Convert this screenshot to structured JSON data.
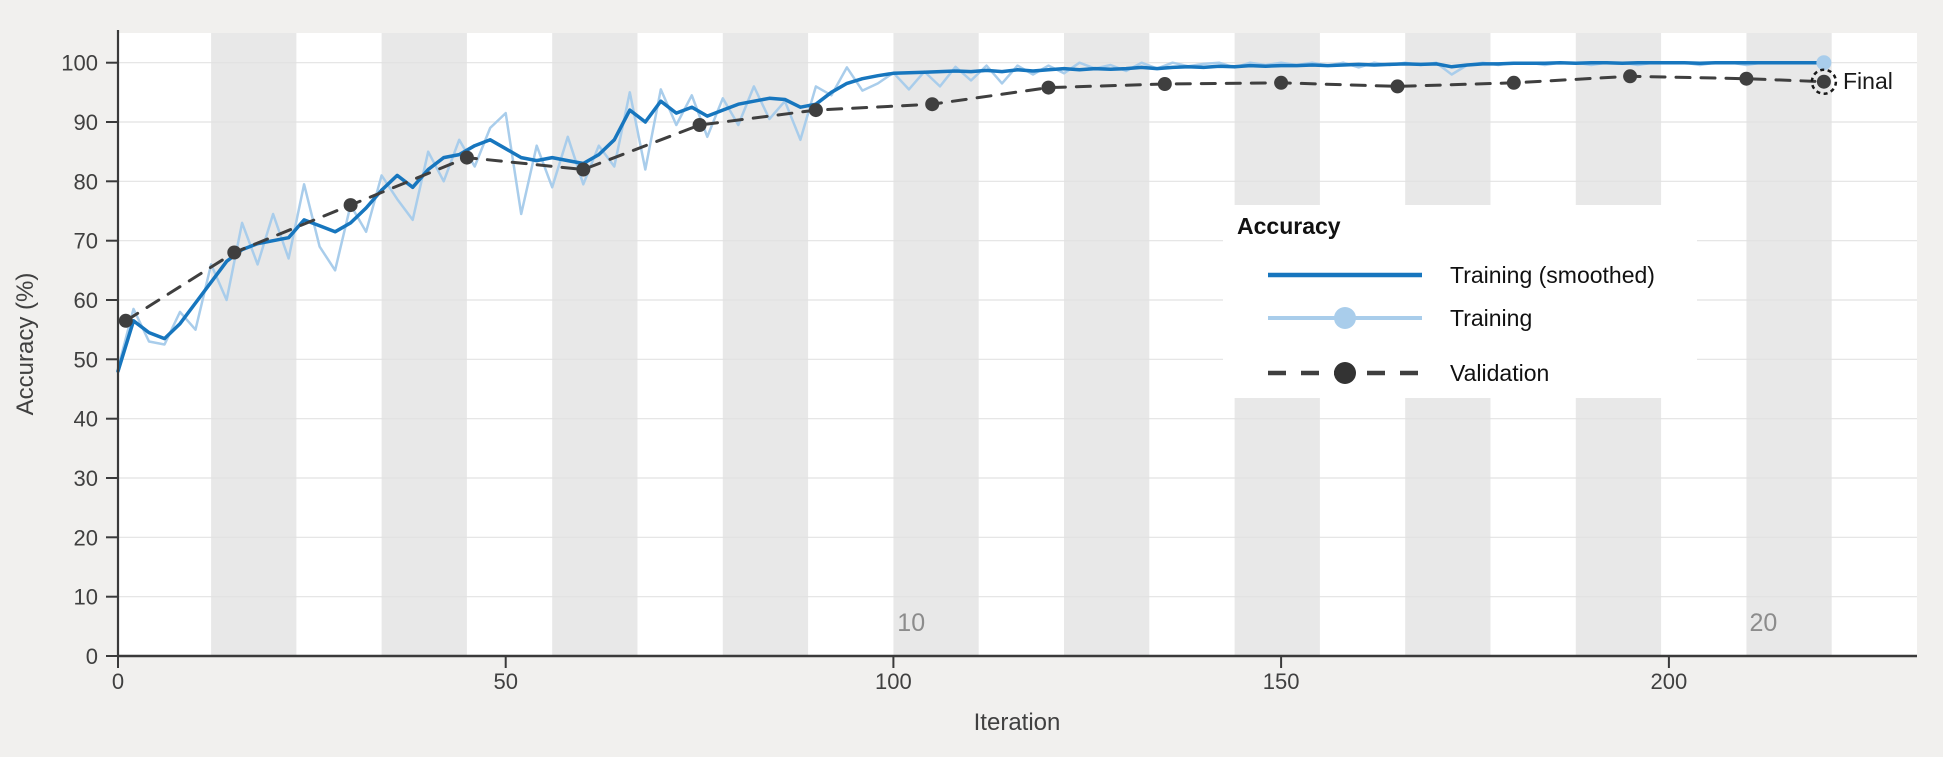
{
  "figure": {
    "background": "#F1F0EE",
    "plot_background": "#FFFFFF",
    "band_color": "#E8E8E8",
    "grid_color": "#E2E2E2",
    "axis_color": "#3A3A3A",
    "tick_label_color": "#404040",
    "epoch_label_color": "#8C8C8C"
  },
  "chart_data": {
    "type": "line",
    "xlabel": "Iteration",
    "ylabel": "Accuracy (%)",
    "xlim": [
      0,
      232
    ],
    "ylim": [
      0,
      105
    ],
    "x_ticks": [
      0,
      50,
      100,
      150,
      200
    ],
    "y_ticks": [
      0,
      10,
      20,
      30,
      40,
      50,
      60,
      70,
      80,
      90,
      100
    ],
    "grid": "horizontal",
    "epoch_bands_iterations": [
      [
        12,
        23
      ],
      [
        34,
        45
      ],
      [
        56,
        67
      ],
      [
        78,
        89
      ],
      [
        100,
        111
      ],
      [
        122,
        133
      ],
      [
        144,
        155
      ],
      [
        166,
        177
      ],
      [
        188,
        199
      ],
      [
        210,
        221
      ]
    ],
    "epoch_labels": [
      {
        "text": "10",
        "iteration": 100.5
      },
      {
        "text": "20",
        "iteration": 210.4
      }
    ],
    "series": [
      {
        "name": "Training (smoothed)",
        "color": "#1776BE",
        "line_width": 3.5,
        "x_start": 0,
        "x_step": 2,
        "values": [
          48,
          56.5,
          54.5,
          53.5,
          56,
          59.5,
          63,
          66.5,
          68.5,
          69.5,
          70,
          70.5,
          73.5,
          72.5,
          71.5,
          73,
          75.5,
          78.5,
          81,
          79,
          82,
          84,
          84.5,
          86,
          87,
          85.5,
          84,
          83.5,
          84,
          83.5,
          83,
          84.5,
          87,
          92,
          90,
          93.5,
          91.5,
          92.5,
          91,
          92,
          93,
          93.5,
          94,
          93.8,
          92.5,
          93,
          95,
          96.5,
          97.3,
          97.8,
          98.2,
          98.3,
          98.4,
          98.5,
          98.6,
          98.5,
          98.7,
          98.5,
          98.8,
          98.6,
          98.8,
          99,
          98.8,
          99,
          98.9,
          99,
          99.2,
          99,
          99.2,
          99.3,
          99.2,
          99.4,
          99.3,
          99.5,
          99.4,
          99.5,
          99.5,
          99.6,
          99.5,
          99.6,
          99.7,
          99.6,
          99.7,
          99.8,
          99.7,
          99.8,
          99.3,
          99.6,
          99.8,
          99.8,
          99.9,
          99.9,
          99.9,
          100,
          99.9,
          100,
          100,
          99.9,
          100,
          100,
          100,
          100,
          99.9,
          100,
          100,
          100,
          100,
          100,
          100,
          100,
          100
        ]
      },
      {
        "name": "Training",
        "color": "#A9CDEB",
        "line_width": 2.5,
        "x_start": 0,
        "x_step": 2,
        "end_marker": true,
        "values": [
          48.5,
          58.5,
          53,
          52.5,
          58,
          55,
          66,
          60,
          73,
          66,
          74.5,
          67,
          79.5,
          69,
          65,
          76,
          71.5,
          81,
          77,
          73.5,
          85,
          80,
          87,
          82.5,
          89,
          91.5,
          74.5,
          86,
          79,
          87.5,
          79.5,
          86,
          82.5,
          95,
          82,
          95.5,
          89.5,
          94.5,
          87.5,
          94,
          89.5,
          96,
          90.5,
          93.5,
          87,
          96,
          94.5,
          99.2,
          95.3,
          96.5,
          98.3,
          95.5,
          98.5,
          96,
          99.3,
          97,
          99.5,
          96.5,
          99.5,
          98,
          99.5,
          98.2,
          100,
          99,
          99.6,
          98.6,
          100,
          99,
          100,
          99.4,
          99.8,
          100,
          99.2,
          100,
          99.6,
          100,
          99.6,
          100,
          99.5,
          100,
          99.2,
          100,
          99.6,
          100,
          99.6,
          100,
          98,
          99.6,
          100,
          99.6,
          100,
          100,
          99.6,
          100,
          100,
          99.6,
          100,
          100,
          99.6,
          100,
          100,
          100,
          99.6,
          100,
          100,
          99.6,
          100,
          100,
          100,
          100,
          100
        ]
      },
      {
        "name": "Validation",
        "color": "#3F3F3F",
        "line_width": 3,
        "dash": [
          14,
          11
        ],
        "marker": "circle",
        "marker_radius": 7,
        "x": [
          1,
          15,
          30,
          45,
          60,
          75,
          90,
          105,
          120,
          135,
          150,
          165,
          180,
          195,
          210,
          220
        ],
        "values": [
          56.5,
          68,
          76,
          84,
          82,
          89.5,
          92,
          93,
          95.8,
          96.4,
          96.6,
          96,
          96.6,
          97.7,
          97.3,
          96.8
        ]
      }
    ],
    "final": {
      "label": "Final",
      "iteration": 220,
      "validation_value": 96.8,
      "training_value": 100
    }
  },
  "legend": {
    "title": "Accuracy",
    "items": [
      {
        "label": "Training (smoothed)"
      },
      {
        "label": "Training"
      },
      {
        "label": "Validation"
      }
    ]
  }
}
